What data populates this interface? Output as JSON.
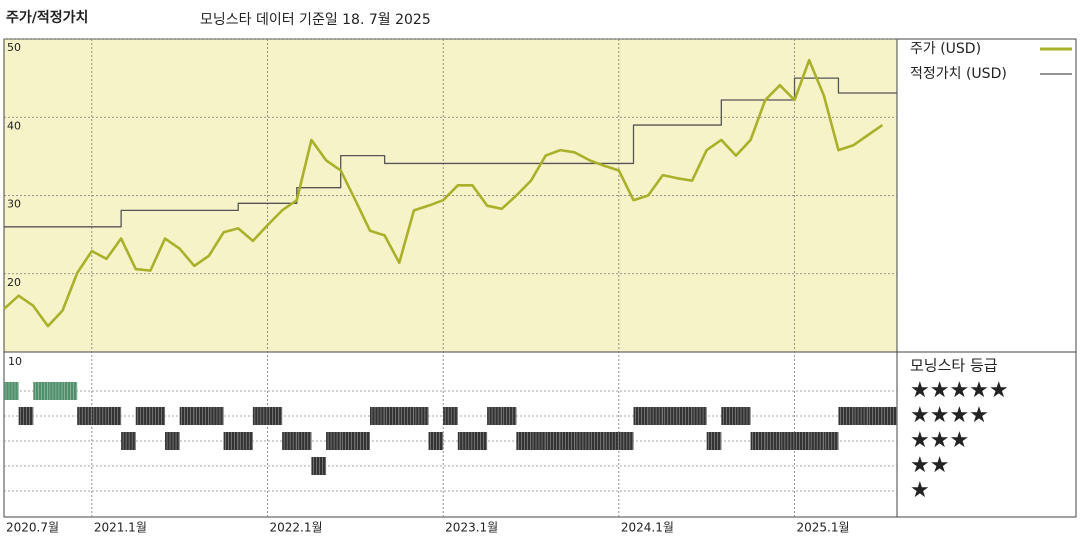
{
  "chart_data": {
    "type": "line",
    "title": "주가/적정가치",
    "subtitle": "모닝스타 데이터 기준일 18. 7월 2025",
    "x": [
      "2020-07",
      "2020-08",
      "2020-09",
      "2020-10",
      "2020-11",
      "2020-12",
      "2021-01",
      "2021-02",
      "2021-03",
      "2021-04",
      "2021-05",
      "2021-06",
      "2021-07",
      "2021-08",
      "2021-09",
      "2021-10",
      "2021-11",
      "2021-12",
      "2022-01",
      "2022-02",
      "2022-03",
      "2022-04",
      "2022-05",
      "2022-06",
      "2022-07",
      "2022-08",
      "2022-09",
      "2022-10",
      "2022-11",
      "2022-12",
      "2023-01",
      "2023-02",
      "2023-03",
      "2023-04",
      "2023-05",
      "2023-06",
      "2023-07",
      "2023-08",
      "2023-09",
      "2023-10",
      "2023-11",
      "2023-12",
      "2024-01",
      "2024-02",
      "2024-03",
      "2024-04",
      "2024-05",
      "2024-06",
      "2024-07",
      "2024-08",
      "2024-09",
      "2024-10",
      "2024-11",
      "2024-12",
      "2025-01",
      "2025-02",
      "2025-03",
      "2025-04",
      "2025-05",
      "2025-06",
      "2025-07"
    ],
    "series": [
      {
        "name": "주가 (USD)",
        "color": "#a9b12a",
        "values": [
          15.5,
          17.2,
          15.9,
          13.3,
          15.3,
          20.1,
          22.9,
          21.9,
          24.5,
          20.6,
          20.4,
          24.5,
          23.2,
          21,
          22.3,
          25.3,
          25.8,
          24.2,
          26.2,
          28.1,
          29.4,
          37.1,
          34.5,
          33.2,
          29.4,
          25.5,
          24.9,
          21.4,
          28.1,
          28.7,
          29.4,
          31.3,
          31.3,
          28.7,
          28.3,
          30,
          31.9,
          35.1,
          35.8,
          35.5,
          34.5,
          33.8,
          33.2,
          29.4,
          30,
          32.6,
          32.2,
          31.9,
          35.8,
          37.1,
          35.1,
          37.1,
          42.2,
          44.1,
          42.2,
          47.3,
          42.8,
          35.8,
          36.4,
          37.7,
          39
        ]
      },
      {
        "name": "적정가치 (USD)",
        "color": "#555555",
        "step": true,
        "values": [
          26,
          26,
          26,
          26,
          26,
          26,
          26,
          26,
          28.1,
          28.1,
          28.1,
          28.1,
          28.1,
          28.1,
          28.1,
          28.1,
          29,
          29,
          29,
          29,
          31,
          31,
          31,
          35.1,
          35.1,
          35.1,
          34.1,
          34.1,
          34.1,
          34.1,
          34.1,
          34.1,
          34.1,
          34.1,
          34.1,
          34.1,
          34.1,
          34.1,
          34.1,
          34.1,
          34.1,
          34.1,
          34.1,
          39,
          39,
          39,
          39,
          39,
          39,
          42.2,
          42.2,
          42.2,
          42.2,
          42.2,
          45,
          45,
          45,
          43.1,
          43.1,
          43.1,
          43.1
        ]
      }
    ],
    "xlim": [
      "2020-07",
      "2025-08"
    ],
    "xticks": [
      {
        "value": "2020-07",
        "label": "2020.7월"
      },
      {
        "value": "2021-01",
        "label": "2021.1월"
      },
      {
        "value": "2022-01",
        "label": "2022.1월"
      },
      {
        "value": "2023-01",
        "label": "2023.1월"
      },
      {
        "value": "2024-01",
        "label": "2024.1월"
      },
      {
        "value": "2025-01",
        "label": "2025.1월"
      }
    ],
    "ylim": [
      10,
      50
    ],
    "yticks": [
      20,
      30,
      40,
      50
    ],
    "grid": true,
    "rating_title": "모닝스타 등급",
    "rating_axis_label": "10",
    "rating_labels": [
      "★",
      "★★",
      "★★★",
      "★★★★",
      "★★★★★"
    ],
    "rating_colors": {
      "5": "#4f8f6c",
      "other": "#333333"
    },
    "rating": [
      5,
      4,
      5,
      5,
      5,
      4,
      4,
      4,
      3,
      4,
      4,
      3,
      4,
      4,
      4,
      3,
      3,
      4,
      4,
      3,
      3,
      2,
      3,
      3,
      3,
      4,
      4,
      4,
      4,
      3,
      4,
      3,
      3,
      4,
      4,
      3,
      3,
      3,
      3,
      3,
      3,
      3,
      3,
      4,
      4,
      4,
      4,
      4,
      3,
      4,
      4,
      3,
      3,
      3,
      3,
      3,
      3,
      4,
      4,
      4,
      4
    ]
  }
}
